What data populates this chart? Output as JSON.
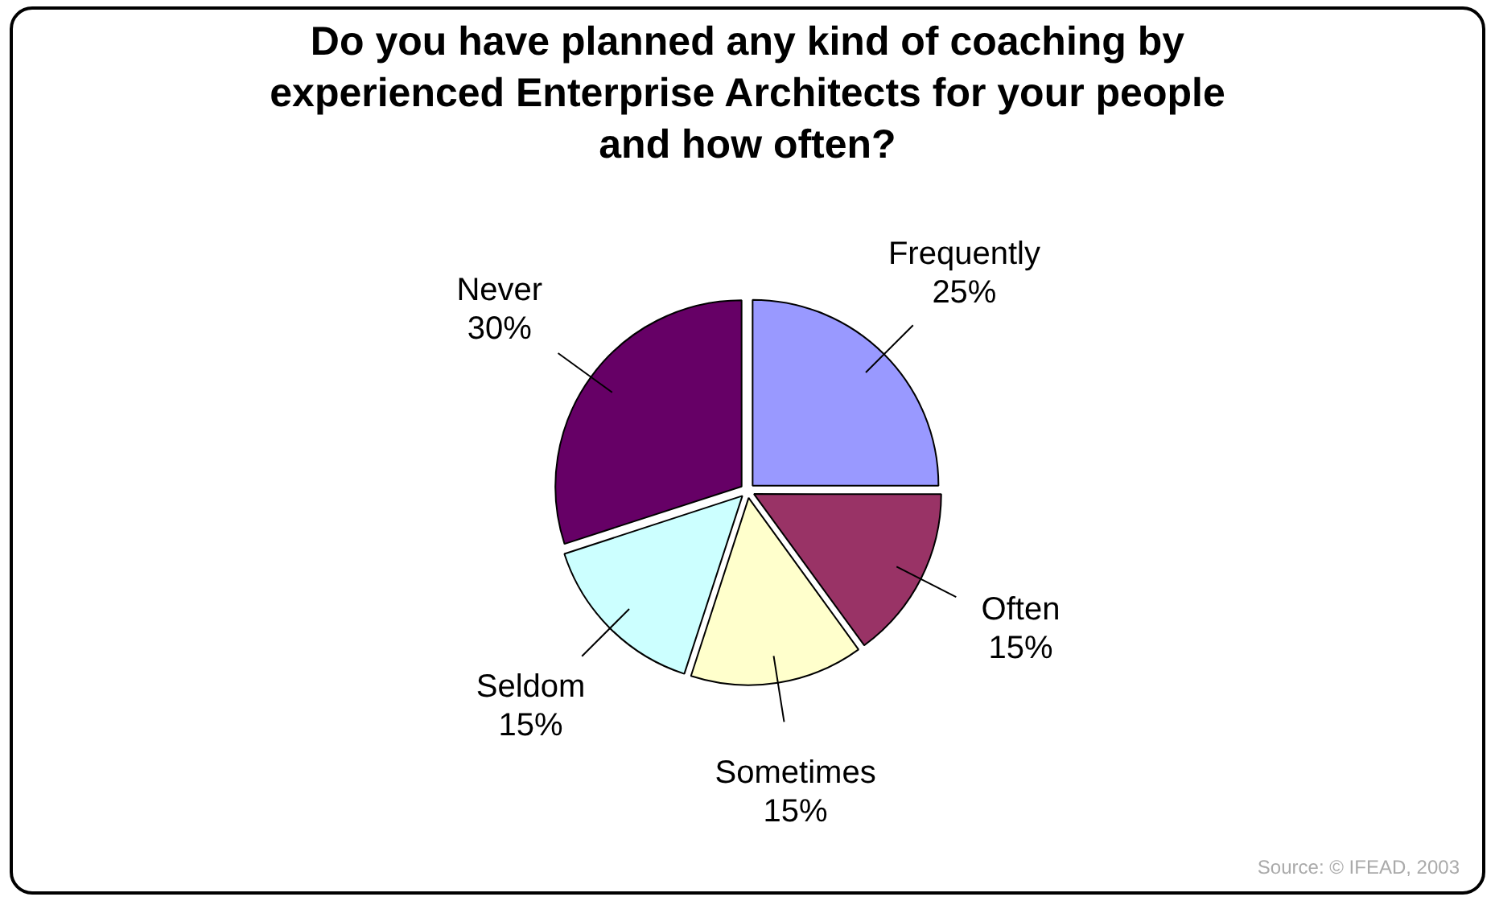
{
  "chart_data": {
    "type": "pie",
    "title": "Do you have planned any kind of coaching by experienced Enterprise Architects for your people and how often?",
    "categories": [
      "Frequently",
      "Often",
      "Sometimes",
      "Seldom",
      "Never"
    ],
    "values": [
      25,
      15,
      15,
      15,
      30
    ],
    "value_labels": [
      "25%",
      "15%",
      "15%",
      "15%",
      "30%"
    ],
    "colors": [
      "#9999ff",
      "#993366",
      "#ffffcc",
      "#ccffff",
      "#660066"
    ],
    "legend": false,
    "annotations": [
      "Source: © IFEAD, 2003"
    ]
  }
}
